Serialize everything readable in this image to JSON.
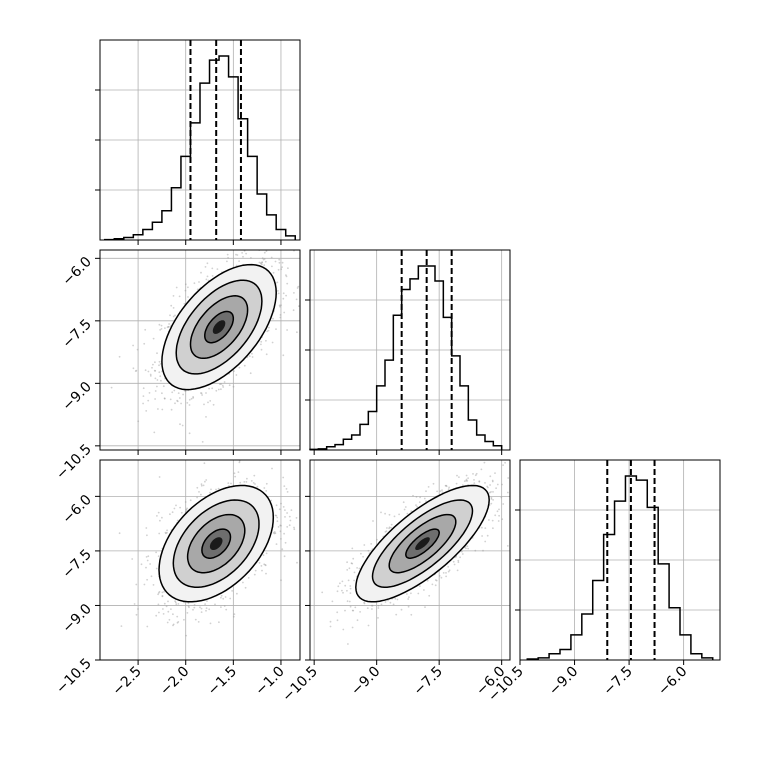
{
  "chart_data": {
    "type": "corner",
    "title": "",
    "parameters": [
      "",
      "",
      ""
    ],
    "grid": true,
    "ranges": [
      [
        -2.9,
        -0.8
      ],
      [
        -10.6,
        -5.8
      ],
      [
        -10.5,
        -5.0
      ]
    ],
    "ticks": [
      [
        "-2.5",
        "-2.0",
        "-1.5",
        "-1.0"
      ],
      [
        "-10.5",
        "-9.0",
        "-7.5",
        "-6.0"
      ],
      [
        "-10.5",
        "-9.0",
        "-7.5",
        "-6.0"
      ]
    ],
    "tick_values": [
      [
        -2.5,
        -2.0,
        -1.5,
        -1.0
      ],
      [
        -10.5,
        -9.0,
        -7.5,
        -6.0
      ],
      [
        -10.5,
        -9.0,
        -7.5,
        -6.0
      ]
    ],
    "tick_text": [
      [
        "−2.5",
        "−2.0",
        "−1.5",
        "−1.0"
      ],
      [
        "−10.5",
        "−9.0",
        "−7.5",
        "−6.0"
      ],
      [
        "−10.5",
        "−9.0",
        "−7.5",
        "−6.0"
      ]
    ],
    "quantiles": [
      [
        -1.95,
        -1.68,
        -1.42
      ],
      [
        -8.4,
        -7.8,
        -7.2
      ],
      [
        -8.1,
        -7.45,
        -6.8
      ]
    ],
    "histograms": [
      {
        "edges": [
          -2.85,
          -2.75,
          -2.65,
          -2.55,
          -2.45,
          -2.35,
          -2.25,
          -2.15,
          -2.05,
          -1.95,
          -1.85,
          -1.75,
          -1.65,
          -1.55,
          -1.45,
          -1.35,
          -1.25,
          -1.15,
          -1.05,
          -0.95,
          -0.85
        ],
        "counts": [
          0.2,
          0.6,
          1.2,
          2.5,
          5,
          8.5,
          14,
          25,
          40,
          56,
          75,
          86,
          88,
          78,
          58,
          40,
          22,
          12,
          5,
          2
        ]
      },
      {
        "edges": [
          -10.6,
          -10.4,
          -10.2,
          -10.0,
          -9.8,
          -9.6,
          -9.4,
          -9.2,
          -9.0,
          -8.8,
          -8.6,
          -8.4,
          -8.2,
          -8.0,
          -7.8,
          -7.6,
          -7.4,
          -7.2,
          -7.0,
          -6.8,
          -6.6,
          -6.4,
          -6.2,
          -6.0
        ],
        "counts": [
          0.3,
          0.5,
          1.5,
          2.5,
          5,
          7,
          12,
          18,
          30,
          42,
          63,
          75,
          80,
          86,
          86,
          79,
          62,
          44,
          30,
          14,
          7,
          4,
          2
        ]
      },
      {
        "edges": [
          -10.3,
          -10.0,
          -9.7,
          -9.4,
          -9.1,
          -8.8,
          -8.5,
          -8.2,
          -7.9,
          -7.6,
          -7.3,
          -7.0,
          -6.7,
          -6.4,
          -6.1,
          -5.8,
          -5.5,
          -5.2
        ],
        "counts": [
          0.5,
          1,
          3,
          5,
          12,
          22,
          38,
          60,
          76,
          88,
          86,
          73,
          46,
          25,
          12,
          3,
          1
        ]
      }
    ],
    "pairs": [
      {
        "row": 1,
        "col": 0,
        "mean": [
          -1.65,
          -7.65
        ],
        "sigma": [
          0.3,
          0.75
        ],
        "rho": 0.55,
        "levels": [
          0.5,
          1.0,
          1.5,
          2.0
        ]
      },
      {
        "row": 2,
        "col": 0,
        "mean": [
          -1.68,
          -7.3
        ],
        "sigma": [
          0.3,
          0.8
        ],
        "rho": 0.45,
        "levels": [
          0.5,
          1.0,
          1.5,
          2.0
        ]
      },
      {
        "row": 2,
        "col": 1,
        "mean": [
          -7.9,
          -7.3
        ],
        "sigma": [
          0.8,
          0.8
        ],
        "rho": 0.75,
        "levels": [
          0.5,
          1.0,
          1.5,
          2.0
        ]
      }
    ]
  }
}
